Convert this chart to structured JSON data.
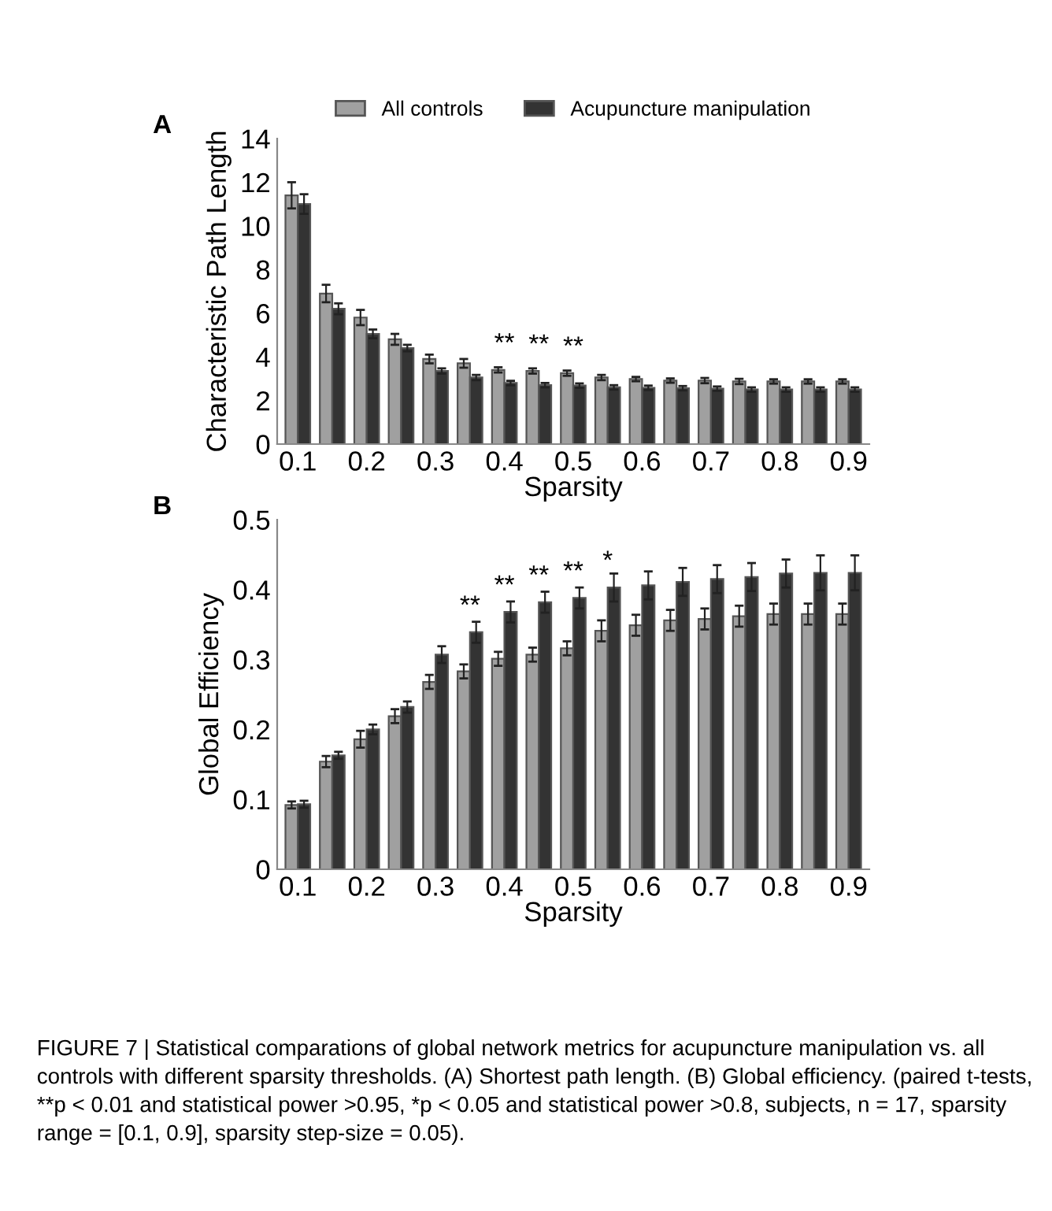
{
  "chart_data": [
    {
      "type": "bar",
      "title": "A",
      "xlabel": "Sparsity",
      "ylabel": "Characteristic Path Length",
      "x": [
        0.1,
        0.15,
        0.2,
        0.25,
        0.3,
        0.35,
        0.4,
        0.45,
        0.5,
        0.55,
        0.6,
        0.65,
        0.7,
        0.75,
        0.8,
        0.85,
        0.9
      ],
      "series": [
        {
          "name": "All controls",
          "color": "#a0a0a0",
          "values": [
            11.4,
            6.9,
            5.8,
            4.8,
            3.9,
            3.7,
            3.4,
            3.35,
            3.25,
            3.05,
            2.98,
            2.91,
            2.91,
            2.87,
            2.87,
            2.87,
            2.87
          ],
          "errors": [
            0.6,
            0.4,
            0.35,
            0.25,
            0.2,
            0.2,
            0.12,
            0.12,
            0.12,
            0.12,
            0.1,
            0.1,
            0.12,
            0.12,
            0.1,
            0.1,
            0.1
          ]
        },
        {
          "name": "Acupuncture manipulation",
          "color": "#333333",
          "values": [
            11.0,
            6.2,
            5.05,
            4.4,
            3.35,
            3.05,
            2.8,
            2.7,
            2.68,
            2.6,
            2.58,
            2.56,
            2.54,
            2.5,
            2.5,
            2.5,
            2.5
          ],
          "errors": [
            0.45,
            0.25,
            0.2,
            0.15,
            0.12,
            0.12,
            0.1,
            0.1,
            0.1,
            0.1,
            0.1,
            0.1,
            0.1,
            0.1,
            0.1,
            0.1,
            0.1
          ]
        }
      ],
      "xlim": [
        0.07,
        0.93
      ],
      "xticks": [
        0.1,
        0.2,
        0.3,
        0.4,
        0.5,
        0.6,
        0.7,
        0.8,
        0.9
      ],
      "ylim": [
        0,
        14
      ],
      "yticks": [
        0,
        2,
        4,
        6,
        8,
        10,
        12,
        14
      ],
      "legend": "top",
      "annotations": [
        {
          "text": "**",
          "x": 0.4,
          "y": 3.4
        },
        {
          "text": "**",
          "x": 0.45,
          "y": 3.35
        },
        {
          "text": "**",
          "x": 0.5,
          "y": 3.25
        }
      ]
    },
    {
      "type": "bar",
      "title": "B",
      "xlabel": "Sparsity",
      "ylabel": "Global Efficiency",
      "x": [
        0.1,
        0.15,
        0.2,
        0.25,
        0.3,
        0.35,
        0.4,
        0.45,
        0.5,
        0.55,
        0.6,
        0.65,
        0.7,
        0.75,
        0.8,
        0.85,
        0.9
      ],
      "series": [
        {
          "color": "#a0a0a0",
          "values": [
            0.092,
            0.154,
            0.186,
            0.219,
            0.268,
            0.283,
            0.301,
            0.307,
            0.316,
            0.341,
            0.349,
            0.356,
            0.358,
            0.362,
            0.365,
            0.365,
            0.365
          ],
          "errors": [
            0.005,
            0.008,
            0.012,
            0.01,
            0.01,
            0.01,
            0.01,
            0.01,
            0.01,
            0.015,
            0.015,
            0.015,
            0.015,
            0.015,
            0.015,
            0.015,
            0.015
          ]
        },
        {
          "color": "#333333",
          "values": [
            0.093,
            0.163,
            0.2,
            0.232,
            0.307,
            0.339,
            0.368,
            0.382,
            0.388,
            0.403,
            0.406,
            0.411,
            0.415,
            0.418,
            0.423,
            0.424,
            0.424
          ],
          "errors": [
            0.005,
            0.005,
            0.007,
            0.008,
            0.012,
            0.015,
            0.015,
            0.015,
            0.015,
            0.02,
            0.02,
            0.02,
            0.02,
            0.02,
            0.02,
            0.025,
            0.025
          ]
        }
      ],
      "xlim": [
        0.07,
        0.93
      ],
      "xticks": [
        0.1,
        0.2,
        0.3,
        0.4,
        0.5,
        0.6,
        0.7,
        0.8,
        0.9
      ],
      "ylim": [
        0,
        0.5
      ],
      "yticks": [
        0,
        0.1,
        0.2,
        0.3,
        0.4,
        0.5
      ],
      "annotations": [
        {
          "text": "**",
          "x": 0.35,
          "y": 0.339
        },
        {
          "text": "**",
          "x": 0.4,
          "y": 0.368
        },
        {
          "text": "**",
          "x": 0.45,
          "y": 0.382
        },
        {
          "text": "**",
          "x": 0.5,
          "y": 0.388
        },
        {
          "text": "*",
          "x": 0.55,
          "y": 0.403
        },
        "FIGURE 7 | Statistical comparations of global network metrics for acupuncture manipulation vs. all controls with different sparsity thresholds. (A) Shortest path length. (B) Global efficiency. (paired t-tests, **p < 0.01 and statistical power >0.95, *p < 0.05 and statistical power >0.8, subjects, n = 17, sparsity range = [0.1, 0.9], sparsity step-size = 0.05)."
      ]
    }
  ]
}
